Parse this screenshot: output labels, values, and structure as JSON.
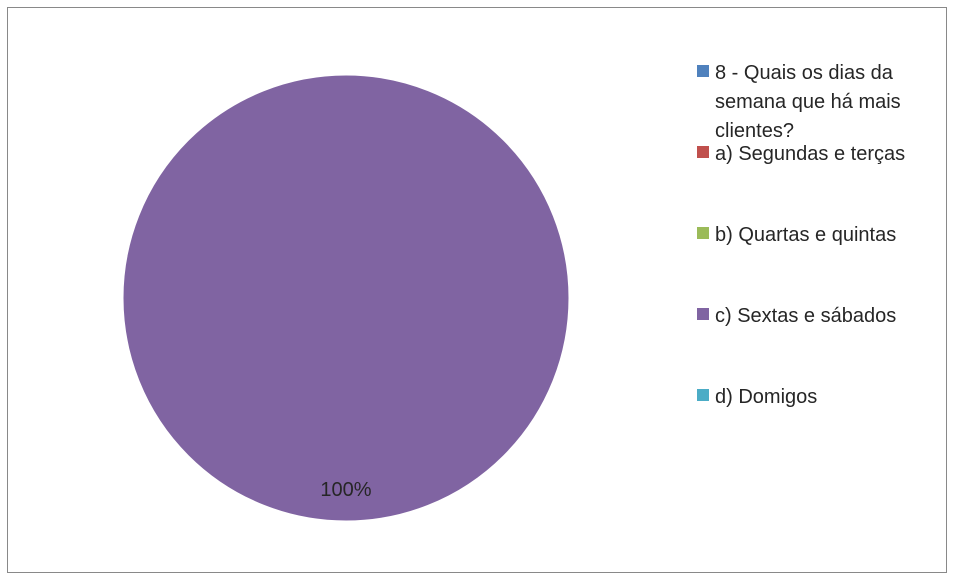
{
  "chart_data": {
    "type": "pie",
    "slices": [
      {
        "label": "8 - Quais os dias da semana que há mais clientes?",
        "value": 0,
        "color": "#4f81bd"
      },
      {
        "label": "a) Segundas e terças",
        "value": 0,
        "color": "#c0504d"
      },
      {
        "label": "b) Quartas e quintas",
        "value": 0,
        "color": "#9bbb59"
      },
      {
        "label": "c) Sextas e sábados",
        "value": 100,
        "color": "#8064a2"
      },
      {
        "label": "d) Domigos",
        "value": 0,
        "color": "#4bacc6"
      }
    ],
    "data_labels": [
      "100%"
    ],
    "legend": {
      "position": "right",
      "entries": [
        {
          "lines": [
            "8 - Quais os dias da",
            "semana que há mais",
            "clientes?"
          ],
          "color": "#4f81bd"
        },
        {
          "lines": [
            "a) Segundas e terças"
          ],
          "color": "#c0504d"
        },
        {
          "lines": [
            "b) Quartas e quintas"
          ],
          "color": "#9bbb59"
        },
        {
          "lines": [
            "c) Sextas e sábados"
          ],
          "color": "#8064a2"
        },
        {
          "lines": [
            "d) Domigos"
          ],
          "color": "#4bacc6"
        }
      ]
    }
  }
}
